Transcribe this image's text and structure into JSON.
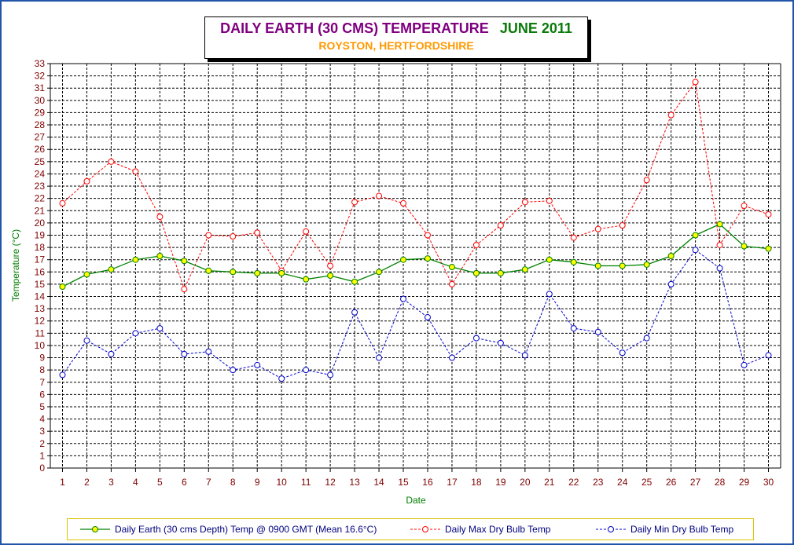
{
  "chart_data": {
    "type": "line",
    "title": "DAILY EARTH (30 CMS) TEMPERATURE",
    "title_period": "JUNE 2011",
    "subtitle": "ROYSTON, HERTFORDSHIRE",
    "xlabel": "Date",
    "ylabel": "Temperature (°C)",
    "ylim": [
      0,
      33
    ],
    "grid": true,
    "legend_position": "bottom",
    "x": [
      1,
      2,
      3,
      4,
      5,
      6,
      7,
      8,
      9,
      10,
      11,
      12,
      13,
      14,
      15,
      16,
      17,
      18,
      19,
      20,
      21,
      22,
      23,
      24,
      25,
      26,
      27,
      28,
      29,
      30
    ],
    "series": [
      {
        "name": "Daily Earth (30 cms Depth) Temp @ 0900 GMT (Mean 16.6°C)",
        "color": "#008000",
        "marker_color": "#ffff00",
        "style": "solid",
        "values": [
          14.8,
          15.8,
          16.2,
          17.0,
          17.3,
          16.9,
          16.1,
          16.0,
          15.9,
          15.9,
          15.4,
          15.7,
          15.2,
          16.0,
          17.0,
          17.1,
          16.4,
          15.9,
          15.9,
          16.2,
          17.0,
          16.8,
          16.5,
          16.5,
          16.6,
          17.3,
          19.0,
          19.9,
          18.1,
          17.9
        ]
      },
      {
        "name": "Daily Max Dry Bulb Temp",
        "color": "#ff0000",
        "marker_color": "#ffffff",
        "style": "dashed",
        "values": [
          21.6,
          23.4,
          25.0,
          24.2,
          20.5,
          14.6,
          19.0,
          18.9,
          19.2,
          16.1,
          19.3,
          16.5,
          21.7,
          22.2,
          21.6,
          19.0,
          15.0,
          18.2,
          19.8,
          21.7,
          21.8,
          18.8,
          19.5,
          19.8,
          23.5,
          28.8,
          31.5,
          18.2,
          21.4,
          20.7
        ]
      },
      {
        "name": "Daily Min Dry Bulb Temp",
        "color": "#0000cc",
        "marker_color": "#ffffff",
        "style": "dashed",
        "values": [
          7.6,
          10.4,
          9.3,
          11.0,
          11.4,
          9.3,
          9.5,
          8.0,
          8.4,
          7.3,
          8.0,
          7.6,
          12.7,
          9.0,
          13.8,
          12.3,
          9.0,
          10.6,
          10.2,
          9.2,
          14.2,
          11.4,
          11.1,
          9.4,
          10.6,
          15.0,
          17.8,
          16.3,
          8.4,
          9.2
        ]
      }
    ]
  }
}
